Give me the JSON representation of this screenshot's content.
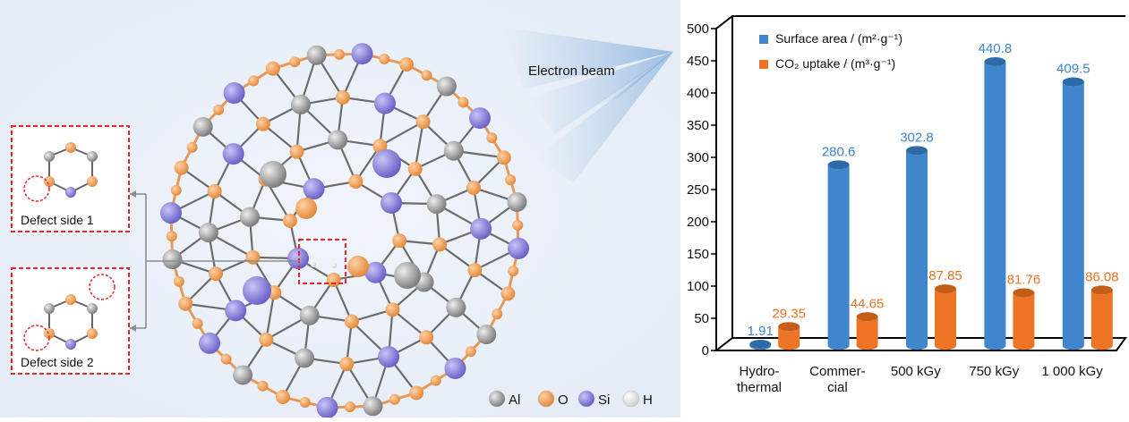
{
  "figure": {
    "beam_label": "Electron beam",
    "defect_1_label": "Defect side 1",
    "defect_2_label": "Defect side 2",
    "atom_legend": [
      {
        "label": "Al",
        "color": "#a8a8a8"
      },
      {
        "label": "O",
        "color": "#f2a35f"
      },
      {
        "label": "Si",
        "color": "#8d86e0"
      },
      {
        "label": "H",
        "color": "#f4f4f4"
      }
    ]
  },
  "colors": {
    "surface": "#3f86cc",
    "co2": "#ec7424",
    "defect_box": "#e8262b"
  },
  "chart_data": {
    "type": "bar",
    "categories": [
      "Hydro-\nthermal",
      "Commer-\ncial",
      "500 kGy",
      "750 kGy",
      "1 000 kGy"
    ],
    "series": [
      {
        "name": "Surface area / (m²·g⁻¹)",
        "values": [
          1.91,
          280.6,
          302.8,
          440.8,
          409.5
        ],
        "labels": [
          "1.91",
          "280.6",
          "302.8",
          "440.8",
          "409.5"
        ]
      },
      {
        "name": "CO₂ uptake / (m³·g⁻¹)",
        "values": [
          29.35,
          44.65,
          87.85,
          81.76,
          86.08
        ],
        "labels": [
          "29.35",
          "44.65",
          "87.85",
          "81.76",
          "86.08"
        ]
      }
    ],
    "ylim": [
      0,
      500
    ],
    "yticks": [
      0,
      50,
      100,
      150,
      200,
      250,
      300,
      350,
      400,
      450,
      500
    ],
    "legend_position": "top-left"
  }
}
